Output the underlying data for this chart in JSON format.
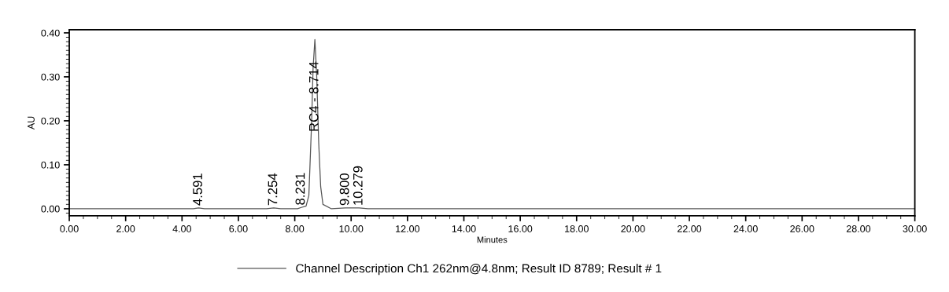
{
  "chart_data": {
    "type": "line",
    "xlabel": "Minutes",
    "ylabel": "AU",
    "x": [
      0,
      4.4,
      4.591,
      4.8,
      7.0,
      7.254,
      7.5,
      8.1,
      8.231,
      8.4,
      8.5,
      8.6,
      8.65,
      8.714,
      8.78,
      8.85,
      8.92,
      9.0,
      9.3,
      9.8,
      10.279,
      10.6,
      30
    ],
    "series": [
      {
        "name": "Channel Description Ch1 262nm@4.8nm; Result ID 8789; Result # 1",
        "color": "#555555",
        "values": [
          0,
          0,
          0.002,
          0,
          0,
          0.002,
          0,
          0,
          0.003,
          0.006,
          0.03,
          0.2,
          0.32,
          0.385,
          0.3,
          0.15,
          0.05,
          0.01,
          0,
          0.002,
          0.002,
          0,
          0
        ]
      }
    ],
    "xlim": [
      0,
      30
    ],
    "xticks": [
      {
        "value": 0,
        "label": "0.00"
      },
      {
        "value": 2,
        "label": "2.00"
      },
      {
        "value": 4,
        "label": "4.00"
      },
      {
        "value": 6,
        "label": "6.00"
      },
      {
        "value": 8,
        "label": "8.00"
      },
      {
        "value": 10,
        "label": "10.00"
      },
      {
        "value": 12,
        "label": "12.00"
      },
      {
        "value": 14,
        "label": "14.00"
      },
      {
        "value": 16,
        "label": "16.00"
      },
      {
        "value": 18,
        "label": "18.00"
      },
      {
        "value": 20,
        "label": "20.00"
      },
      {
        "value": 22,
        "label": "22.00"
      },
      {
        "value": 24,
        "label": "24.00"
      },
      {
        "value": 26,
        "label": "26.00"
      },
      {
        "value": 28,
        "label": "28.00"
      },
      {
        "value": 30,
        "label": "30.00"
      }
    ],
    "ylim": [
      -0.016,
      0.407
    ],
    "yticks": [
      {
        "value": 0,
        "label": "0.00"
      },
      {
        "value": 0.1,
        "label": "0.10"
      },
      {
        "value": 0.2,
        "label": "0.20"
      },
      {
        "value": 0.3,
        "label": "0.30"
      },
      {
        "value": 0.4,
        "label": "0.40"
      }
    ],
    "annotations": [
      {
        "text": "4.591",
        "x": 4.591,
        "y": 0.002
      },
      {
        "text": "7.254",
        "x": 7.254,
        "y": 0.002
      },
      {
        "text": "8.231",
        "x": 8.231,
        "y": 0.003
      },
      {
        "text": "RC4 - 8.714",
        "x": 8.714,
        "y": 0.17
      },
      {
        "text": "9.800",
        "x": 9.8,
        "y": 0.002
      },
      {
        "text": "10.279",
        "x": 10.279,
        "y": 0.002
      }
    ],
    "grid": false,
    "legend": "bottom",
    "marker": "none",
    "line_style": "solid"
  }
}
